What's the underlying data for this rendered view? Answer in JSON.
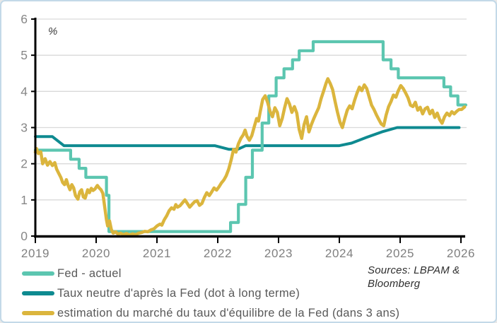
{
  "axis": {
    "unit_label": "%"
  },
  "sources": {
    "line1": "Sources: LBPAM &",
    "line2": "Bloomberg"
  },
  "chart_data": {
    "type": "line",
    "title": "",
    "xlabel": "",
    "ylabel": "%",
    "xlim": [
      2019,
      2026.1
    ],
    "ylim": [
      0,
      6
    ],
    "x_ticks": [
      2019,
      2020,
      2021,
      2022,
      2023,
      2024,
      2025,
      2026
    ],
    "y_ticks": [
      0,
      1,
      2,
      3,
      4,
      5,
      6
    ],
    "grid": true,
    "legend_position": "bottom-left",
    "colors": {
      "grid": "#d9d9d9",
      "axis": "#000000",
      "tick_text": "#7f7f7f"
    },
    "series": [
      {
        "name": "Taux neutre d'après la Fed (dot à long terme)",
        "color": "#0E8A90",
        "width": 4,
        "points": [
          [
            2019.0,
            2.75
          ],
          [
            2019.28,
            2.75
          ],
          [
            2019.47,
            2.5
          ],
          [
            2021.95,
            2.5
          ],
          [
            2022.18,
            2.4
          ],
          [
            2022.33,
            2.4
          ],
          [
            2022.46,
            2.5
          ],
          [
            2024.0,
            2.5
          ],
          [
            2024.2,
            2.57
          ],
          [
            2024.45,
            2.73
          ],
          [
            2024.7,
            2.88
          ],
          [
            2024.95,
            3.0
          ],
          [
            2025.97,
            3.0
          ]
        ]
      },
      {
        "name": "Fed - actuel",
        "color": "#5CC6B0",
        "width": 4.2,
        "points": [
          [
            2019.0,
            2.375
          ],
          [
            2019.58,
            2.375
          ],
          [
            2019.58,
            2.125
          ],
          [
            2019.72,
            2.125
          ],
          [
            2019.72,
            1.875
          ],
          [
            2019.83,
            1.875
          ],
          [
            2019.83,
            1.625
          ],
          [
            2020.17,
            1.625
          ],
          [
            2020.17,
            1.125
          ],
          [
            2020.21,
            1.125
          ],
          [
            2020.21,
            0.125
          ],
          [
            2022.21,
            0.125
          ],
          [
            2022.21,
            0.375
          ],
          [
            2022.34,
            0.375
          ],
          [
            2022.34,
            0.875
          ],
          [
            2022.46,
            0.875
          ],
          [
            2022.46,
            1.625
          ],
          [
            2022.57,
            1.625
          ],
          [
            2022.57,
            2.375
          ],
          [
            2022.73,
            2.375
          ],
          [
            2022.73,
            3.125
          ],
          [
            2022.84,
            3.125
          ],
          [
            2022.84,
            3.875
          ],
          [
            2022.96,
            3.875
          ],
          [
            2022.96,
            4.375
          ],
          [
            2023.09,
            4.375
          ],
          [
            2023.09,
            4.625
          ],
          [
            2023.23,
            4.625
          ],
          [
            2023.23,
            4.875
          ],
          [
            2023.34,
            4.875
          ],
          [
            2023.34,
            5.125
          ],
          [
            2023.57,
            5.125
          ],
          [
            2023.57,
            5.375
          ],
          [
            2024.72,
            5.375
          ],
          [
            2024.72,
            4.875
          ],
          [
            2024.85,
            4.875
          ],
          [
            2024.85,
            4.625
          ],
          [
            2024.97,
            4.625
          ],
          [
            2024.97,
            4.375
          ],
          [
            2025.72,
            4.375
          ],
          [
            2025.72,
            4.125
          ],
          [
            2025.83,
            4.125
          ],
          [
            2025.83,
            3.875
          ],
          [
            2025.95,
            3.875
          ],
          [
            2025.95,
            3.625
          ],
          [
            2026.08,
            3.625
          ]
        ]
      },
      {
        "name": "estimation du marché du taux d'équilibre de la Fed (dans 3 ans)",
        "color": "#DBB53D",
        "width": 4.5,
        "points": [
          [
            2019.0,
            2.32
          ],
          [
            2019.02,
            2.42
          ],
          [
            2019.05,
            2.28
          ],
          [
            2019.09,
            2.33
          ],
          [
            2019.12,
            2.0
          ],
          [
            2019.16,
            2.14
          ],
          [
            2019.2,
            1.96
          ],
          [
            2019.24,
            2.06
          ],
          [
            2019.28,
            1.95
          ],
          [
            2019.32,
            2.03
          ],
          [
            2019.35,
            1.85
          ],
          [
            2019.38,
            1.75
          ],
          [
            2019.42,
            1.62
          ],
          [
            2019.45,
            1.48
          ],
          [
            2019.48,
            1.42
          ],
          [
            2019.51,
            1.56
          ],
          [
            2019.54,
            1.4
          ],
          [
            2019.57,
            1.28
          ],
          [
            2019.6,
            1.42
          ],
          [
            2019.63,
            1.33
          ],
          [
            2019.66,
            1.12
          ],
          [
            2019.7,
            1.02
          ],
          [
            2019.73,
            1.22
          ],
          [
            2019.76,
            1.28
          ],
          [
            2019.79,
            1.08
          ],
          [
            2019.82,
            1.05
          ],
          [
            2019.86,
            1.28
          ],
          [
            2019.89,
            1.2
          ],
          [
            2019.92,
            1.32
          ],
          [
            2019.95,
            1.26
          ],
          [
            2019.98,
            1.3
          ],
          [
            2020.02,
            1.4
          ],
          [
            2020.05,
            1.33
          ],
          [
            2020.08,
            1.28
          ],
          [
            2020.11,
            1.18
          ],
          [
            2020.14,
            0.82
          ],
          [
            2020.17,
            0.45
          ],
          [
            2020.19,
            0.28
          ],
          [
            2020.22,
            0.42
          ],
          [
            2020.25,
            0.18
          ],
          [
            2020.28,
            0.08
          ],
          [
            2020.32,
            0.12
          ],
          [
            2020.36,
            0.05
          ],
          [
            2020.4,
            0.08
          ],
          [
            2020.45,
            0.04
          ],
          [
            2020.5,
            0.07
          ],
          [
            2020.55,
            0.03
          ],
          [
            2020.6,
            0.06
          ],
          [
            2020.65,
            0.04
          ],
          [
            2020.7,
            0.08
          ],
          [
            2020.75,
            0.1
          ],
          [
            2020.8,
            0.13
          ],
          [
            2020.85,
            0.12
          ],
          [
            2020.9,
            0.17
          ],
          [
            2020.95,
            0.2
          ],
          [
            2021.0,
            0.28
          ],
          [
            2021.05,
            0.33
          ],
          [
            2021.08,
            0.3
          ],
          [
            2021.12,
            0.45
          ],
          [
            2021.16,
            0.56
          ],
          [
            2021.2,
            0.7
          ],
          [
            2021.24,
            0.78
          ],
          [
            2021.28,
            0.74
          ],
          [
            2021.31,
            0.87
          ],
          [
            2021.34,
            0.8
          ],
          [
            2021.38,
            0.84
          ],
          [
            2021.42,
            0.92
          ],
          [
            2021.46,
            1.0
          ],
          [
            2021.5,
            0.9
          ],
          [
            2021.54,
            0.8
          ],
          [
            2021.58,
            0.88
          ],
          [
            2021.62,
            0.95
          ],
          [
            2021.66,
            0.98
          ],
          [
            2021.7,
            0.85
          ],
          [
            2021.74,
            0.9
          ],
          [
            2021.78,
            1.07
          ],
          [
            2021.82,
            1.2
          ],
          [
            2021.86,
            1.12
          ],
          [
            2021.9,
            1.22
          ],
          [
            2021.94,
            1.33
          ],
          [
            2021.98,
            1.27
          ],
          [
            2022.02,
            1.36
          ],
          [
            2022.06,
            1.47
          ],
          [
            2022.1,
            1.55
          ],
          [
            2022.14,
            1.67
          ],
          [
            2022.18,
            1.85
          ],
          [
            2022.22,
            2.1
          ],
          [
            2022.26,
            2.4
          ],
          [
            2022.3,
            2.32
          ],
          [
            2022.34,
            2.55
          ],
          [
            2022.38,
            2.7
          ],
          [
            2022.42,
            2.8
          ],
          [
            2022.45,
            2.93
          ],
          [
            2022.48,
            2.76
          ],
          [
            2022.52,
            2.65
          ],
          [
            2022.56,
            2.78
          ],
          [
            2022.6,
            3.02
          ],
          [
            2022.64,
            3.25
          ],
          [
            2022.67,
            3.18
          ],
          [
            2022.7,
            3.45
          ],
          [
            2022.74,
            3.78
          ],
          [
            2022.78,
            3.88
          ],
          [
            2022.82,
            3.7
          ],
          [
            2022.86,
            3.45
          ],
          [
            2022.9,
            3.3
          ],
          [
            2022.94,
            3.55
          ],
          [
            2022.98,
            3.42
          ],
          [
            2023.02,
            3.05
          ],
          [
            2023.06,
            3.25
          ],
          [
            2023.1,
            3.55
          ],
          [
            2023.14,
            3.8
          ],
          [
            2023.18,
            3.65
          ],
          [
            2023.22,
            3.42
          ],
          [
            2023.26,
            3.58
          ],
          [
            2023.3,
            3.4
          ],
          [
            2023.34,
            2.95
          ],
          [
            2023.38,
            2.7
          ],
          [
            2023.42,
            3.08
          ],
          [
            2023.46,
            3.3
          ],
          [
            2023.5,
            2.88
          ],
          [
            2023.54,
            3.08
          ],
          [
            2023.58,
            3.25
          ],
          [
            2023.62,
            3.4
          ],
          [
            2023.66,
            3.55
          ],
          [
            2023.7,
            3.8
          ],
          [
            2023.74,
            4.0
          ],
          [
            2023.78,
            4.22
          ],
          [
            2023.81,
            4.35
          ],
          [
            2023.85,
            4.22
          ],
          [
            2023.89,
            4.05
          ],
          [
            2023.93,
            3.72
          ],
          [
            2023.97,
            3.42
          ],
          [
            2024.01,
            3.15
          ],
          [
            2024.05,
            3.0
          ],
          [
            2024.09,
            3.25
          ],
          [
            2024.13,
            3.48
          ],
          [
            2024.17,
            3.6
          ],
          [
            2024.21,
            3.52
          ],
          [
            2024.25,
            3.75
          ],
          [
            2024.29,
            3.95
          ],
          [
            2024.33,
            4.12
          ],
          [
            2024.37,
            4.02
          ],
          [
            2024.41,
            4.18
          ],
          [
            2024.45,
            4.08
          ],
          [
            2024.49,
            3.85
          ],
          [
            2024.53,
            3.62
          ],
          [
            2024.57,
            3.5
          ],
          [
            2024.61,
            3.35
          ],
          [
            2024.65,
            3.22
          ],
          [
            2024.69,
            3.1
          ],
          [
            2024.73,
            3.05
          ],
          [
            2024.77,
            3.35
          ],
          [
            2024.81,
            3.58
          ],
          [
            2024.85,
            3.72
          ],
          [
            2024.89,
            3.9
          ],
          [
            2024.93,
            3.84
          ],
          [
            2024.97,
            4.02
          ],
          [
            2025.01,
            4.16
          ],
          [
            2025.05,
            4.08
          ],
          [
            2025.09,
            3.96
          ],
          [
            2025.13,
            3.82
          ],
          [
            2025.17,
            3.62
          ],
          [
            2025.21,
            3.58
          ],
          [
            2025.25,
            3.7
          ],
          [
            2025.29,
            3.48
          ],
          [
            2025.33,
            3.56
          ],
          [
            2025.37,
            3.38
          ],
          [
            2025.41,
            3.52
          ],
          [
            2025.45,
            3.56
          ],
          [
            2025.49,
            3.38
          ],
          [
            2025.53,
            3.48
          ],
          [
            2025.57,
            3.28
          ],
          [
            2025.61,
            3.4
          ],
          [
            2025.65,
            3.22
          ],
          [
            2025.69,
            3.12
          ],
          [
            2025.73,
            3.3
          ],
          [
            2025.77,
            3.4
          ],
          [
            2025.81,
            3.33
          ],
          [
            2025.85,
            3.44
          ],
          [
            2025.89,
            3.38
          ],
          [
            2025.93,
            3.45
          ],
          [
            2025.97,
            3.5
          ],
          [
            2026.01,
            3.5
          ],
          [
            2026.06,
            3.57
          ]
        ]
      }
    ],
    "legend_order": [
      1,
      0,
      2
    ]
  }
}
